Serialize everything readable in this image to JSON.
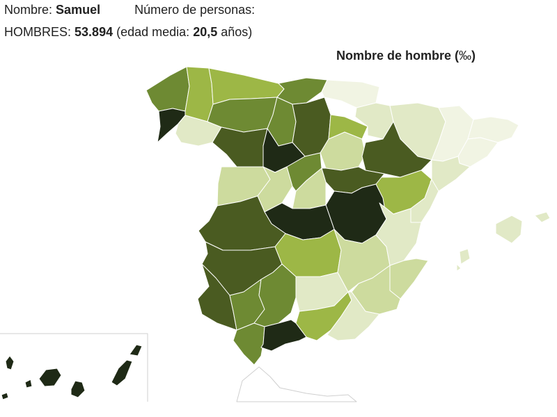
{
  "header": {
    "name_label": "Nombre:",
    "name_value": "Samuel",
    "persons_label": "Número de personas:",
    "men_label": "HOMBRES:",
    "men_value": "53.894",
    "age_open": "(edad media:",
    "age_value": "20,5",
    "age_unit": "años)"
  },
  "legend": {
    "title": "Nombre de hombre (",
    "unit": "‰",
    "title_close": ")"
  },
  "colors": {
    "class_1": "#f1f4e3",
    "class_2": "#e1e9c6",
    "class_3": "#cddb9e",
    "class_4": "#9db746",
    "class_5": "#6e8a33",
    "class_6": "#4a5b21",
    "class_7": "#1f2a16"
  },
  "map_data": {
    "type": "choropleth",
    "regions": [
      {
        "id": "a-coruna",
        "class": 5
      },
      {
        "id": "lugo",
        "class": 4
      },
      {
        "id": "asturias",
        "class": 4
      },
      {
        "id": "cantabria",
        "class": 5
      },
      {
        "id": "pontevedra",
        "class": 7
      },
      {
        "id": "ourense",
        "class": 2
      },
      {
        "id": "leon",
        "class": 5
      },
      {
        "id": "palencia",
        "class": 5
      },
      {
        "id": "burgos",
        "class": 6
      },
      {
        "id": "zamora",
        "class": 6
      },
      {
        "id": "valladolid",
        "class": 7
      },
      {
        "id": "soria",
        "class": 3
      },
      {
        "id": "pais-vasco",
        "class": 1
      },
      {
        "id": "navarra",
        "class": 2
      },
      {
        "id": "la-rioja",
        "class": 4
      },
      {
        "id": "huesca",
        "class": 2
      },
      {
        "id": "zaragoza",
        "class": 6
      },
      {
        "id": "teruel",
        "class": 4
      },
      {
        "id": "lleida",
        "class": 1
      },
      {
        "id": "barcelona",
        "class": 1
      },
      {
        "id": "girona",
        "class": 1
      },
      {
        "id": "tarragona",
        "class": 2
      },
      {
        "id": "salamanca",
        "class": 3
      },
      {
        "id": "avila",
        "class": 3
      },
      {
        "id": "segovia",
        "class": 5
      },
      {
        "id": "madrid",
        "class": 3
      },
      {
        "id": "guadalajara",
        "class": 6
      },
      {
        "id": "caceres",
        "class": 6
      },
      {
        "id": "toledo",
        "class": 7
      },
      {
        "id": "cuenca",
        "class": 7
      },
      {
        "id": "castellon",
        "class": 2
      },
      {
        "id": "valencia",
        "class": 2
      },
      {
        "id": "badajoz",
        "class": 6
      },
      {
        "id": "ciudad-real",
        "class": 4
      },
      {
        "id": "albacete",
        "class": 3
      },
      {
        "id": "alicante",
        "class": 3
      },
      {
        "id": "murcia",
        "class": 3
      },
      {
        "id": "huelva",
        "class": 6
      },
      {
        "id": "sevilla",
        "class": 5
      },
      {
        "id": "cordoba",
        "class": 5
      },
      {
        "id": "jaen",
        "class": 2
      },
      {
        "id": "granada",
        "class": 4
      },
      {
        "id": "almeria",
        "class": 2
      },
      {
        "id": "cadiz",
        "class": 5
      },
      {
        "id": "malaga",
        "class": 7
      },
      {
        "id": "baleares",
        "class": 2
      },
      {
        "id": "canarias",
        "class": 7
      }
    ]
  }
}
